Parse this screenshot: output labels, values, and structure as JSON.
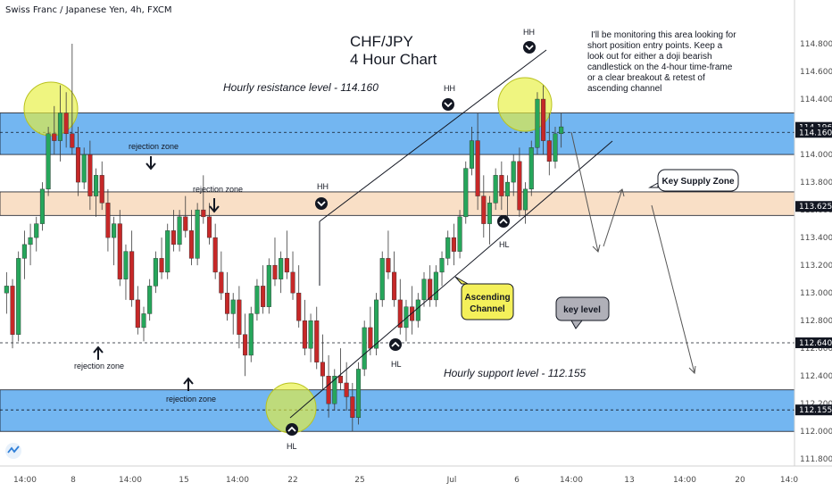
{
  "symbol_title": "Swiss Franc / Japanese Yen, 4h, FXCM",
  "main_title_line1": "CHF/JPY",
  "main_title_line2": "4 Hour Chart",
  "note_lines": [
    "I'll be monitoring this area looking for",
    "short position entry points. Keep a",
    "look out for either a doji bearish",
    "candlestick on the 4-hour time-frame",
    "or a clear breakout & retest of",
    "ascending channel"
  ],
  "colors": {
    "up": "#26a65b",
    "down": "#c62828",
    "resistance_zone": "#5aa9ee",
    "supply_zone": "#f7d7b8",
    "highlight": "#e6f03c",
    "callout_yellow": "#f4f05a",
    "callout_gray": "#b0b0b8"
  },
  "chart_data": {
    "type": "candlestick",
    "symbol": "Swiss Franc / Japanese Yen",
    "timeframe": "4h",
    "source": "FXCM",
    "y_axis": {
      "min": 111.75,
      "max": 115.0,
      "ticks": [
        "114.800",
        "114.600",
        "114.400",
        "114.200",
        "114.000",
        "113.800",
        "113.600",
        "113.400",
        "113.200",
        "113.000",
        "112.800",
        "112.600",
        "112.400",
        "112.200",
        "112.000",
        "111.800"
      ]
    },
    "x_axis": {
      "ticks": [
        "14:00",
        "8",
        "14:00",
        "15",
        "14:00",
        "22",
        "25",
        "Jul",
        "6",
        "14:00",
        "13",
        "14:00",
        "20",
        "14:0"
      ]
    },
    "price_tags": [
      {
        "label": "114.196",
        "value": 114.196,
        "color": "#131722"
      },
      {
        "label": "114.160",
        "value": 114.16,
        "color": "#131722"
      },
      {
        "label": "113.625",
        "value": 113.625,
        "color": "#131722"
      },
      {
        "label": "112.640",
        "value": 112.64,
        "color": "#131722"
      },
      {
        "label": "112.155",
        "value": 112.155,
        "color": "#131722"
      }
    ],
    "zones": [
      {
        "name": "Hourly resistance level - 114.160",
        "from": 114.0,
        "to": 114.3
      },
      {
        "name": "Key Supply Zone",
        "from": 113.56,
        "to": 113.73
      },
      {
        "name": "Hourly support level - 112.155",
        "from": 112.0,
        "to": 112.3
      }
    ],
    "levels": [
      {
        "name": "key level",
        "value": 112.64,
        "style": "dashed"
      },
      {
        "value": 114.16,
        "style": "dashed"
      },
      {
        "value": 112.155,
        "style": "dashed"
      }
    ],
    "annotations": [
      {
        "text": "Hourly resistance level - 114.160"
      },
      {
        "text": "Hourly support level - 112.155"
      },
      {
        "text": "rejection zone"
      },
      {
        "text": "rejection zone"
      },
      {
        "text": "rejection zone"
      },
      {
        "text": "rejection zone"
      },
      {
        "text": "HH"
      },
      {
        "text": "HH"
      },
      {
        "text": "HH"
      },
      {
        "text": "HL"
      },
      {
        "text": "HL"
      },
      {
        "text": "HL"
      },
      {
        "text": "Ascending Channel"
      },
      {
        "text": "key level"
      },
      {
        "text": "Key Supply Zone"
      }
    ],
    "candles": [
      [
        113.0,
        113.15,
        112.85,
        113.05
      ],
      [
        113.05,
        113.1,
        112.6,
        112.7
      ],
      [
        112.7,
        113.3,
        112.65,
        113.25
      ],
      [
        113.25,
        113.45,
        113.1,
        113.35
      ],
      [
        113.35,
        113.5,
        113.2,
        113.4
      ],
      [
        113.4,
        113.55,
        113.3,
        113.5
      ],
      [
        113.5,
        113.8,
        113.45,
        113.75
      ],
      [
        113.75,
        114.2,
        113.7,
        114.15
      ],
      [
        114.15,
        114.35,
        114.0,
        114.1
      ],
      [
        114.1,
        114.5,
        113.95,
        114.3
      ],
      [
        114.3,
        114.45,
        114.05,
        114.15
      ],
      [
        114.15,
        114.8,
        114.0,
        114.05
      ],
      [
        114.05,
        114.2,
        113.7,
        113.8
      ],
      [
        113.8,
        114.05,
        113.75,
        114.0
      ],
      [
        114.0,
        114.1,
        113.6,
        113.7
      ],
      [
        113.7,
        113.9,
        113.55,
        113.85
      ],
      [
        113.85,
        113.95,
        113.6,
        113.65
      ],
      [
        113.65,
        113.75,
        113.3,
        113.4
      ],
      [
        113.4,
        113.55,
        113.2,
        113.5
      ],
      [
        113.5,
        113.6,
        113.05,
        113.1
      ],
      [
        113.1,
        113.35,
        112.95,
        113.3
      ],
      [
        113.3,
        113.45,
        112.9,
        112.95
      ],
      [
        112.95,
        113.05,
        112.7,
        112.75
      ],
      [
        112.75,
        112.9,
        112.65,
        112.85
      ],
      [
        112.85,
        113.1,
        112.8,
        113.05
      ],
      [
        113.05,
        113.3,
        113.0,
        113.25
      ],
      [
        113.25,
        113.4,
        113.1,
        113.15
      ],
      [
        113.15,
        113.5,
        113.1,
        113.45
      ],
      [
        113.45,
        113.6,
        113.3,
        113.35
      ],
      [
        113.35,
        113.6,
        113.3,
        113.55
      ],
      [
        113.55,
        113.7,
        113.4,
        113.45
      ],
      [
        113.45,
        113.6,
        113.2,
        113.25
      ],
      [
        113.25,
        113.65,
        113.2,
        113.6
      ],
      [
        113.6,
        113.85,
        113.5,
        113.55
      ],
      [
        113.55,
        113.65,
        113.35,
        113.4
      ],
      [
        113.4,
        113.5,
        113.1,
        113.15
      ],
      [
        113.15,
        113.3,
        112.95,
        113.0
      ],
      [
        113.0,
        113.15,
        112.8,
        112.85
      ],
      [
        112.85,
        113.0,
        112.7,
        112.95
      ],
      [
        112.95,
        113.05,
        112.6,
        112.7
      ],
      [
        112.7,
        112.85,
        112.4,
        112.55
      ],
      [
        112.55,
        112.9,
        112.5,
        112.85
      ],
      [
        112.85,
        113.1,
        112.8,
        113.05
      ],
      [
        113.05,
        113.2,
        112.85,
        112.9
      ],
      [
        112.9,
        113.25,
        112.85,
        113.2
      ],
      [
        113.2,
        113.4,
        113.05,
        113.1
      ],
      [
        113.1,
        113.3,
        113.0,
        113.25
      ],
      [
        113.25,
        113.45,
        113.1,
        113.15
      ],
      [
        113.15,
        113.3,
        112.95,
        113.0
      ],
      [
        113.0,
        113.2,
        112.75,
        112.8
      ],
      [
        112.8,
        112.95,
        112.55,
        112.6
      ],
      [
        112.6,
        112.85,
        112.5,
        112.8
      ],
      [
        112.8,
        112.9,
        112.45,
        112.5
      ],
      [
        112.5,
        112.7,
        112.3,
        112.4
      ],
      [
        112.4,
        112.55,
        112.1,
        112.2
      ],
      [
        112.2,
        112.45,
        112.15,
        112.4
      ],
      [
        112.4,
        112.6,
        112.3,
        112.35
      ],
      [
        112.35,
        112.5,
        112.15,
        112.25
      ],
      [
        112.25,
        112.35,
        112.0,
        112.1
      ],
      [
        112.1,
        112.5,
        112.05,
        112.45
      ],
      [
        112.45,
        112.8,
        112.4,
        112.75
      ],
      [
        112.75,
        112.9,
        112.55,
        112.6
      ],
      [
        112.6,
        113.0,
        112.55,
        112.95
      ],
      [
        112.95,
        113.3,
        112.9,
        113.25
      ],
      [
        113.25,
        113.45,
        113.1,
        113.15
      ],
      [
        113.15,
        113.3,
        112.9,
        112.95
      ],
      [
        112.95,
        113.1,
        112.7,
        112.75
      ],
      [
        112.75,
        112.95,
        112.65,
        112.9
      ],
      [
        112.9,
        113.05,
        112.7,
        112.8
      ],
      [
        112.8,
        113.0,
        112.75,
        112.95
      ],
      [
        112.95,
        113.15,
        112.9,
        113.1
      ],
      [
        113.1,
        113.2,
        112.9,
        112.95
      ],
      [
        112.95,
        113.2,
        112.9,
        113.15
      ],
      [
        113.15,
        113.3,
        113.05,
        113.25
      ],
      [
        113.25,
        113.45,
        113.2,
        113.4
      ],
      [
        113.4,
        113.5,
        113.2,
        113.3
      ],
      [
        113.3,
        113.6,
        113.25,
        113.55
      ],
      [
        113.55,
        113.95,
        113.5,
        113.9
      ],
      [
        113.9,
        114.2,
        113.85,
        114.1
      ],
      [
        114.1,
        114.3,
        113.6,
        113.7
      ],
      [
        113.7,
        113.85,
        113.4,
        113.5
      ],
      [
        113.5,
        113.7,
        113.35,
        113.65
      ],
      [
        113.65,
        113.9,
        113.6,
        113.85
      ],
      [
        113.85,
        113.95,
        113.6,
        113.7
      ],
      [
        113.7,
        113.85,
        113.55,
        113.8
      ],
      [
        113.8,
        114.0,
        113.7,
        113.95
      ],
      [
        113.95,
        114.05,
        113.55,
        113.6
      ],
      [
        113.6,
        113.8,
        113.5,
        113.75
      ],
      [
        113.75,
        114.1,
        113.7,
        114.05
      ],
      [
        114.05,
        114.45,
        114.0,
        114.4
      ],
      [
        114.4,
        114.5,
        114.0,
        114.1
      ],
      [
        114.1,
        114.3,
        113.85,
        113.95
      ],
      [
        113.95,
        114.2,
        113.9,
        114.15
      ],
      [
        114.15,
        114.3,
        114.05,
        114.2
      ]
    ]
  }
}
